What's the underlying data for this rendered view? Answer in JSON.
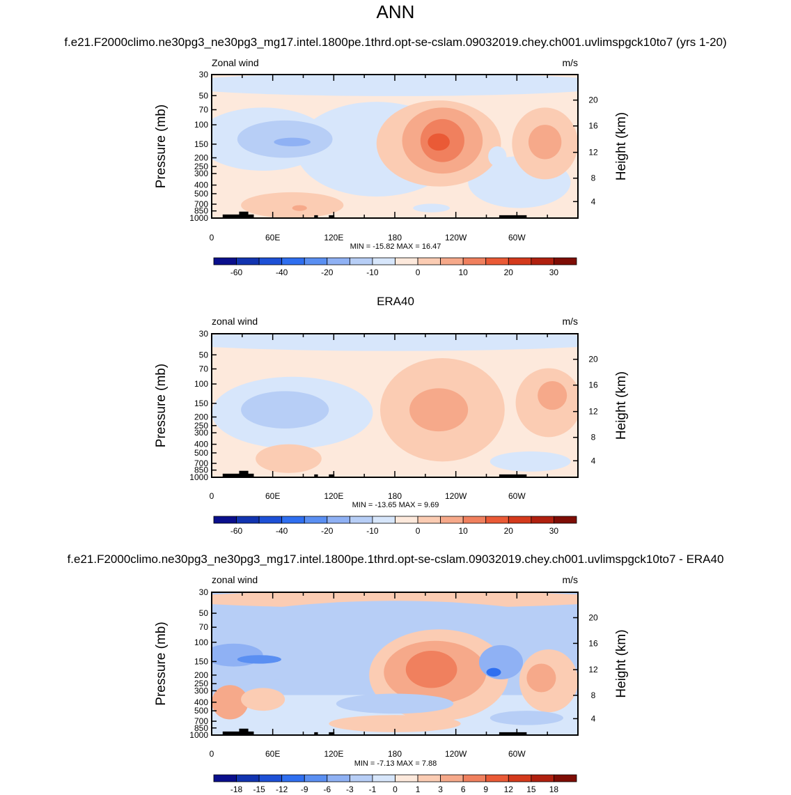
{
  "page_title": "ANN",
  "colors": {
    "scale": [
      "#0a0f8c",
      "#1234b0",
      "#1d50d6",
      "#2f6ff0",
      "#5a8ff2",
      "#8fb1f4",
      "#b7cef6",
      "#d7e6fb",
      "#fde9dc",
      "#fbccb3",
      "#f6a98a",
      "#f0805e",
      "#ea5a36",
      "#d43a1c",
      "#b0200f",
      "#7e0d05"
    ]
  },
  "chart_data": [
    {
      "type": "heatmap",
      "title": "f.e21.F2000climo.ne30pg3_ne30pg3_mg17.intel.1800pe.1thrd.opt-se-cslam.09032019.chey.ch001.uvlimspgck10to7 (yrs 1-20)",
      "left_label": "Zonal wind",
      "units": "m/s",
      "ylabel": "Pressure (mb)",
      "y2label": "Height (km)",
      "xticks": [
        "0",
        "60E",
        "120E",
        "180",
        "120W",
        "60W"
      ],
      "yticks": [
        "30",
        "50",
        "70",
        "100",
        "150",
        "200",
        "250",
        "300",
        "400",
        "500",
        "700",
        "850",
        "1000"
      ],
      "y2ticks": [
        "20",
        "16",
        "12",
        "8",
        "4"
      ],
      "stats": "MIN = -15.82  MAX =  16.47",
      "colorbar_labels": [
        "-60",
        "-40",
        "-20",
        "-10",
        "0",
        "10",
        "20",
        "30"
      ],
      "min": -15.82,
      "max": 16.47
    },
    {
      "type": "heatmap",
      "title": "ERA40",
      "left_label": "zonal wind",
      "units": "m/s",
      "ylabel": "Pressure (mb)",
      "y2label": "Height (km)",
      "xticks": [
        "0",
        "60E",
        "120E",
        "180",
        "120W",
        "60W"
      ],
      "yticks": [
        "30",
        "50",
        "70",
        "100",
        "150",
        "200",
        "250",
        "300",
        "400",
        "500",
        "700",
        "850",
        "1000"
      ],
      "y2ticks": [
        "20",
        "16",
        "12",
        "8",
        "4"
      ],
      "stats": "MIN = -13.65  MAX =   9.69",
      "colorbar_labels": [
        "-60",
        "-40",
        "-20",
        "-10",
        "0",
        "10",
        "20",
        "30"
      ],
      "min": -13.65,
      "max": 9.69
    },
    {
      "type": "heatmap",
      "title": "f.e21.F2000climo.ne30pg3_ne30pg3_mg17.intel.1800pe.1thrd.opt-se-cslam.09032019.chey.ch001.uvlimspgck10to7 - ERA40",
      "left_label": "zonal wind",
      "units": "m/s",
      "ylabel": "Pressure (mb)",
      "y2label": "Height (km)",
      "xticks": [
        "0",
        "60E",
        "120E",
        "180",
        "120W",
        "60W"
      ],
      "yticks": [
        "30",
        "50",
        "70",
        "100",
        "150",
        "200",
        "250",
        "300",
        "400",
        "500",
        "700",
        "850",
        "1000"
      ],
      "y2ticks": [
        "20",
        "16",
        "12",
        "8",
        "4"
      ],
      "stats": "MIN =  -7.13  MAX =   7.88",
      "colorbar_labels": [
        "-18",
        "-15",
        "-12",
        "-9",
        "-6",
        "-3",
        "-1",
        "0",
        "1",
        "3",
        "6",
        "9",
        "12",
        "15",
        "18"
      ],
      "min": -7.13,
      "max": 7.88
    }
  ]
}
